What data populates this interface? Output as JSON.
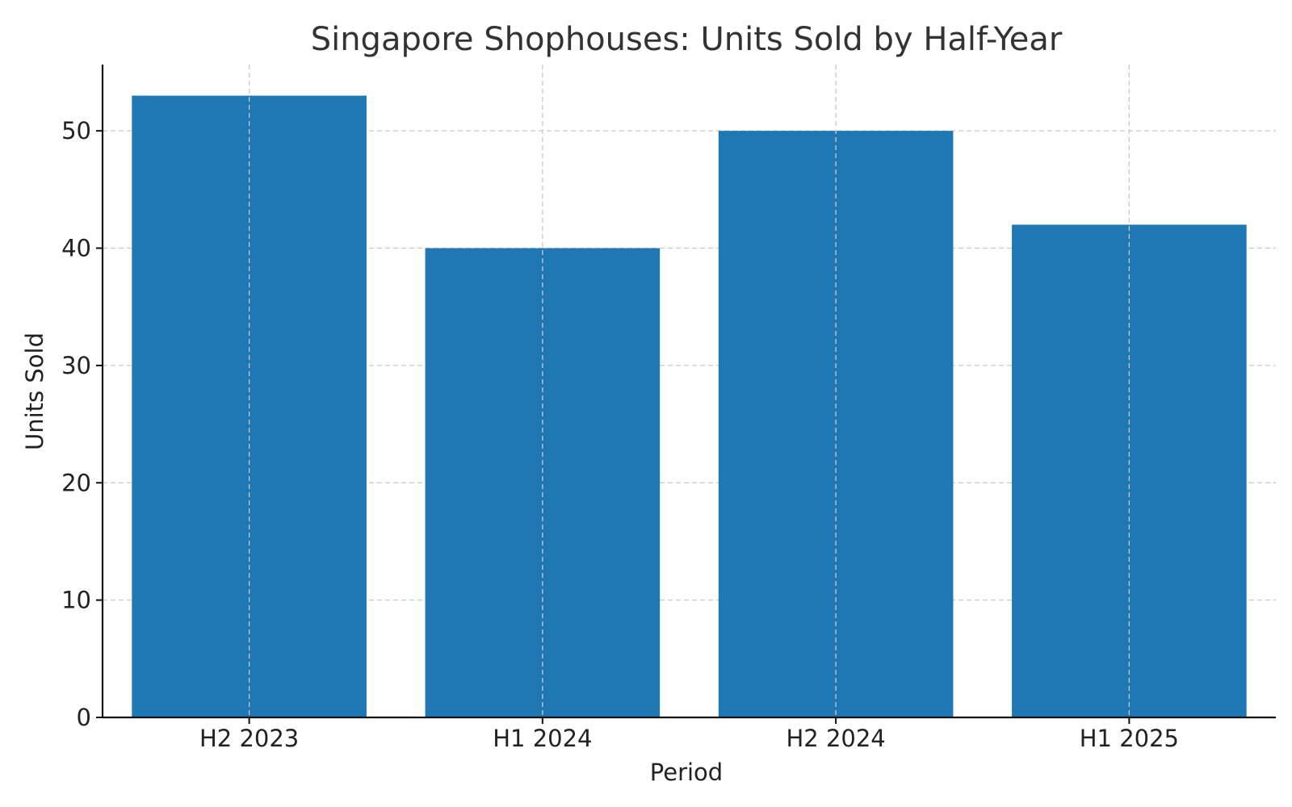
{
  "chart_data": {
    "type": "bar",
    "title": "Singapore Shophouses: Units Sold by Half-Year",
    "xlabel": "Period",
    "ylabel": "Units Sold",
    "categories": [
      "H2 2023",
      "H1 2024",
      "H2 2024",
      "H1 2025"
    ],
    "values": [
      53,
      40,
      50,
      42
    ],
    "ylim": [
      0,
      55.65
    ],
    "yticks": [
      0,
      10,
      20,
      30,
      40,
      50
    ],
    "grid": true,
    "bar_color": "#1f77b4"
  }
}
